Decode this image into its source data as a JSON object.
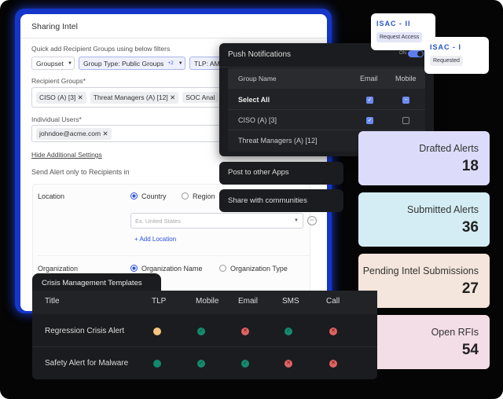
{
  "sharing": {
    "title": "Sharing Intel",
    "quick_add": "Quick add Recipient Groups using below filters",
    "filters": {
      "groupset": "Groupset",
      "group_type": "Group Type: Public Groups",
      "group_type_more": "+2",
      "tlp": "TLP: AMB"
    },
    "recipient_groups_label": "Recipient Groups*",
    "recipient_groups": [
      "CISO (A) [3]",
      "Threat Managers (A) [12]",
      "SOC Anal"
    ],
    "individual_users_label": "Individual Users*",
    "individual_users": [
      "johndoe@acme.com"
    ],
    "hide_settings": "Hide Additional Settings",
    "send_only": "Send Alert only to Recipients in",
    "location": {
      "label": "Location",
      "options": [
        "Country",
        "Region"
      ],
      "selected": "Country",
      "placeholder": "Ex. United States",
      "add": "+ Add Location"
    },
    "organization": {
      "label": "Organization",
      "options": [
        "Organization Name",
        "Organization Type"
      ],
      "selected": "Organization Name"
    }
  },
  "push": {
    "title": "Push Notifications",
    "toggle_label": "ON",
    "toggle_on": true,
    "columns": [
      "Group Name",
      "Email",
      "Mobile"
    ],
    "rows": [
      {
        "name": "Select All",
        "email": "checked",
        "mobile": "indeterminate"
      },
      {
        "name": "CISO (A) [3]",
        "email": "checked",
        "mobile": "unchecked"
      },
      {
        "name": "Threat Managers (A) [12]",
        "email": "checked",
        "mobile": "unchecked"
      }
    ]
  },
  "actions": {
    "post": "Post to other Apps",
    "share": "Share with communities"
  },
  "isac": [
    {
      "logo": "ISAC - II",
      "button": "Request Access"
    },
    {
      "logo": "ISAC - I",
      "button": "Requested"
    }
  ],
  "stats": [
    {
      "title": "Drafted Alerts",
      "value": "18",
      "color": "#dcdcfa"
    },
    {
      "title": "Submitted Alerts",
      "value": "36",
      "color": "#d4edf4"
    },
    {
      "title": "Pending Intel Submissions",
      "value": "27",
      "color": "#f4e6dc"
    },
    {
      "title": "Open RFIs",
      "value": "54",
      "color": "#f3dde6"
    }
  ],
  "crisis": {
    "tab": "Crisis Management Templates",
    "columns": [
      "Title",
      "TLP",
      "Mobile",
      "Email",
      "SMS",
      "Call"
    ],
    "rows": [
      {
        "title": "Regression Crisis Alert",
        "tlp": "#f6c47f",
        "mobile": true,
        "email": false,
        "sms": true,
        "call": false
      },
      {
        "title": "Safety Alert for Malware",
        "tlp": "#118a6c",
        "mobile": true,
        "email": true,
        "sms": false,
        "call": false
      }
    ]
  }
}
